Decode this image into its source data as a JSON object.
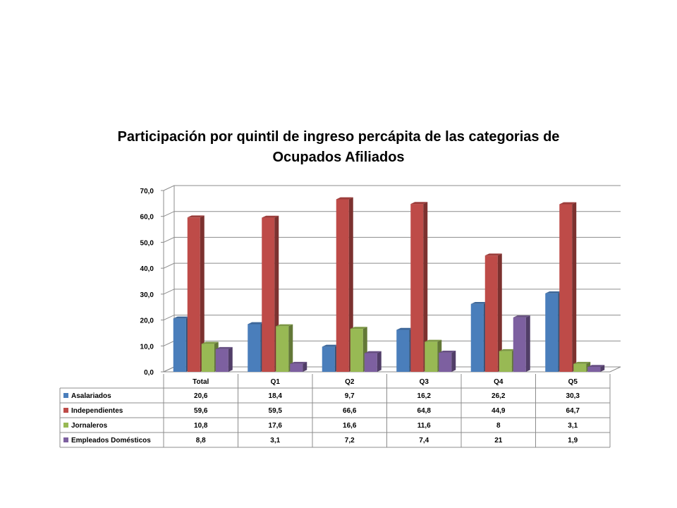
{
  "chart_data": {
    "type": "bar",
    "title_lines": [
      "Participación por quintil de ingreso percápita de las categorias de",
      "Ocupados Afiliados"
    ],
    "categories": [
      "Total",
      "Q1",
      "Q2",
      "Q3",
      "Q4",
      "Q5"
    ],
    "series": [
      {
        "name": "Asalariados",
        "values": [
          20.6,
          18.4,
          9.7,
          16.2,
          26.2,
          30.3
        ],
        "labels": [
          "20,6",
          "18,4",
          "9,7",
          "16,2",
          "26,2",
          "30,3"
        ]
      },
      {
        "name": "Independientes",
        "values": [
          59.6,
          59.5,
          66.6,
          64.8,
          44.9,
          64.7
        ],
        "labels": [
          "59,6",
          "59,5",
          "66,6",
          "64,8",
          "44,9",
          "64,7"
        ]
      },
      {
        "name": "Jornaleros",
        "values": [
          10.8,
          17.6,
          16.6,
          11.6,
          8,
          3.1
        ],
        "labels": [
          "10,8",
          "17,6",
          "16,6",
          "11,6",
          "8",
          "3,1"
        ]
      },
      {
        "name": "Empleados Domésticos",
        "values": [
          8.8,
          3.1,
          7.2,
          7.4,
          21,
          1.9
        ],
        "labels": [
          "8,8",
          "3,1",
          "7,2",
          "7,4",
          "21",
          "1,9"
        ]
      }
    ],
    "ylim": [
      0,
      70
    ],
    "y_ticks": [
      "0,0",
      "10,0",
      "20,0",
      "30,0",
      "40,0",
      "50,0",
      "60,0",
      "70,0"
    ],
    "grid": true,
    "legend": "data-table-below",
    "colors": [
      "#4a7ebb",
      "#be4b48",
      "#98b954",
      "#7d60a0"
    ]
  }
}
